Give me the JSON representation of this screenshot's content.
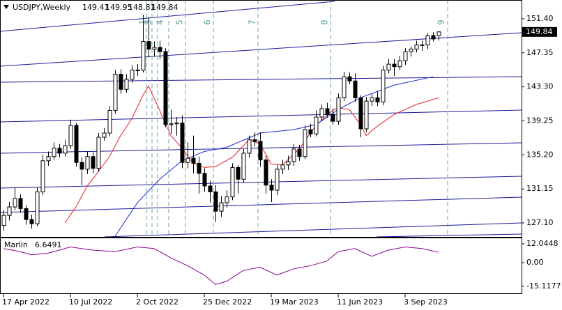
{
  "chart_data": {
    "type": "candlestick",
    "title": "USDJPY,Weekly",
    "categories": [
      "17 Apr 2022",
      null,
      null,
      null,
      null,
      null,
      null,
      null,
      null,
      null,
      null,
      null,
      "10 Jul 2022",
      null,
      null,
      null,
      null,
      null,
      null,
      null,
      null,
      null,
      null,
      null,
      "2 Oct 2022",
      null,
      null,
      null,
      null,
      null,
      null,
      null,
      null,
      null,
      null,
      null,
      "25 Dec 2022",
      null,
      null,
      null,
      null,
      null,
      null,
      null,
      null,
      null,
      null,
      null,
      "19 Mar 2023",
      null,
      null,
      null,
      null,
      null,
      null,
      null,
      null,
      null,
      null,
      null,
      "11 Jun 2023",
      null,
      null,
      null,
      null,
      null,
      null,
      null,
      null,
      null,
      null,
      null,
      "3 Sep 2023",
      null,
      null,
      null,
      null,
      null,
      null
    ],
    "ohlc": [
      [
        126.8,
        128.6,
        126.2,
        128.0
      ],
      [
        128.0,
        129.6,
        127.4,
        129.0
      ],
      [
        129.0,
        131.3,
        128.6,
        130.0
      ],
      [
        130.0,
        130.5,
        128.3,
        128.8
      ],
      [
        128.8,
        129.2,
        126.9,
        127.5
      ],
      [
        127.5,
        128.1,
        126.4,
        127.0
      ],
      [
        127.0,
        131.3,
        126.7,
        130.8
      ],
      [
        130.8,
        135.2,
        130.4,
        134.5
      ],
      [
        134.5,
        135.6,
        133.9,
        135.0
      ],
      [
        135.0,
        136.7,
        134.6,
        136.0
      ],
      [
        136.0,
        136.5,
        134.9,
        135.4
      ],
      [
        135.4,
        137.0,
        135.0,
        136.3
      ],
      [
        136.3,
        139.4,
        135.9,
        138.7
      ],
      [
        138.7,
        139.0,
        133.8,
        134.3
      ],
      [
        134.3,
        134.9,
        131.6,
        133.5
      ],
      [
        133.5,
        135.6,
        132.9,
        135.0
      ],
      [
        135.0,
        135.5,
        133.0,
        133.6
      ],
      [
        133.6,
        137.8,
        133.2,
        137.3
      ],
      [
        137.3,
        138.4,
        136.9,
        137.8
      ],
      [
        137.8,
        141.0,
        137.4,
        140.5
      ],
      [
        140.5,
        145.3,
        140.1,
        144.8
      ],
      [
        144.8,
        145.4,
        142.5,
        143.0
      ],
      [
        143.0,
        144.8,
        142.6,
        144.2
      ],
      [
        144.2,
        145.9,
        143.8,
        145.3
      ],
      [
        145.3,
        146.0,
        144.6,
        145.3
      ],
      [
        145.3,
        151.9,
        145.0,
        148.7
      ],
      [
        148.7,
        151.6,
        146.8,
        147.8
      ],
      [
        147.8,
        148.7,
        146.9,
        148.0
      ],
      [
        148.0,
        148.8,
        146.6,
        147.5
      ],
      [
        147.5,
        147.9,
        138.5,
        138.8
      ],
      [
        138.8,
        140.6,
        137.7,
        138.9
      ],
      [
        138.9,
        139.7,
        137.5,
        139.0
      ],
      [
        139.0,
        139.9,
        133.6,
        134.3
      ],
      [
        134.3,
        136.7,
        133.6,
        134.8
      ],
      [
        134.8,
        137.5,
        133.0,
        134.2
      ],
      [
        134.2,
        135.0,
        130.6,
        133.0
      ],
      [
        133.0,
        133.6,
        130.8,
        131.5
      ],
      [
        131.5,
        132.1,
        129.5,
        130.8
      ],
      [
        130.8,
        131.6,
        127.2,
        128.5
      ],
      [
        128.5,
        130.3,
        127.8,
        129.5
      ],
      [
        129.5,
        131.0,
        128.9,
        130.2
      ],
      [
        130.2,
        134.2,
        129.8,
        133.7
      ],
      [
        133.7,
        134.0,
        130.6,
        132.3
      ],
      [
        132.3,
        135.9,
        131.9,
        135.4
      ],
      [
        135.4,
        137.5,
        134.9,
        137.0
      ],
      [
        137.0,
        137.9,
        136.2,
        136.8
      ],
      [
        136.8,
        137.9,
        133.8,
        134.6
      ],
      [
        134.6,
        135.1,
        130.6,
        131.6
      ],
      [
        131.6,
        132.3,
        129.6,
        131.0
      ],
      [
        131.0,
        134.0,
        130.4,
        133.5
      ],
      [
        133.5,
        134.6,
        132.9,
        134.0
      ],
      [
        134.0,
        135.1,
        133.4,
        134.4
      ],
      [
        134.4,
        136.5,
        133.9,
        135.9
      ],
      [
        135.9,
        136.4,
        134.5,
        135.0
      ],
      [
        135.0,
        138.7,
        134.7,
        138.2
      ],
      [
        138.2,
        138.9,
        137.3,
        137.7
      ],
      [
        137.7,
        140.5,
        137.4,
        139.7
      ],
      [
        139.7,
        141.2,
        139.2,
        140.7
      ],
      [
        140.7,
        141.4,
        139.6,
        140.0
      ],
      [
        140.0,
        140.7,
        138.8,
        139.2
      ],
      [
        139.2,
        142.5,
        138.8,
        142.0
      ],
      [
        142.0,
        145.1,
        141.6,
        144.5
      ],
      [
        144.5,
        145.0,
        143.6,
        144.0
      ],
      [
        144.0,
        144.9,
        141.5,
        142.0
      ],
      [
        142.0,
        142.3,
        137.3,
        138.3
      ],
      [
        138.3,
        142.1,
        137.9,
        141.6
      ],
      [
        141.6,
        142.5,
        141.0,
        142.0
      ],
      [
        142.0,
        142.8,
        141.0,
        141.5
      ],
      [
        141.5,
        145.8,
        141.1,
        145.3
      ],
      [
        145.3,
        146.6,
        144.9,
        146.0
      ],
      [
        146.0,
        146.6,
        144.6,
        145.7
      ],
      [
        145.7,
        147.0,
        145.3,
        146.4
      ],
      [
        146.4,
        147.9,
        145.9,
        147.5
      ],
      [
        147.5,
        148.1,
        146.9,
        147.8
      ],
      [
        147.8,
        148.8,
        147.4,
        148.3
      ],
      [
        148.3,
        148.8,
        147.6,
        148.3
      ],
      [
        148.3,
        149.7,
        147.8,
        149.4
      ],
      [
        149.4,
        149.8,
        148.7,
        149.0
      ],
      [
        149.41,
        149.95,
        148.81,
        149.84
      ]
    ],
    "moving_averages": [
      {
        "color": "#e8202a",
        "x": [
          11,
          13,
          15,
          17,
          19,
          21,
          23,
          25,
          26,
          28,
          30,
          32,
          34,
          36,
          38,
          41,
          44,
          46,
          48,
          50,
          53,
          56,
          59,
          60,
          62,
          64,
          65,
          67,
          70,
          74,
          78
        ],
        "values": [
          127.1,
          129.0,
          131.5,
          133.2,
          135.0,
          137.5,
          139.5,
          142.3,
          143.4,
          140.5,
          137.5,
          136.0,
          134.2,
          133.7,
          133.8,
          134.9,
          137.0,
          136.5,
          134.1,
          134.0,
          135.9,
          138.7,
          140.5,
          140.8,
          140.6,
          138.8,
          137.5,
          138.6,
          140.0,
          141.2,
          142.0
        ]
      },
      {
        "color": "#1a2bd4",
        "x": [
          20,
          24,
          28,
          32,
          36,
          40,
          46,
          52,
          56,
          60,
          64,
          70,
          77
        ],
        "values": [
          125.5,
          129.5,
          132.3,
          134.5,
          135.6,
          136.1,
          137.8,
          138.2,
          138.8,
          140.6,
          142.0,
          143.5,
          144.5
        ]
      }
    ],
    "ylim": [
      125.44,
      153.64
    ],
    "yticks": [
      {
        "value": 127.1,
        "label": "127.10"
      },
      {
        "value": 131.15,
        "label": "131.15"
      },
      {
        "value": 135.2,
        "label": "135.20"
      },
      {
        "value": 139.25,
        "label": "139.25"
      },
      {
        "value": 143.3,
        "label": "143.30"
      },
      {
        "value": 147.35,
        "label": "147.35"
      },
      {
        "value": 151.4,
        "label": "151.40"
      }
    ],
    "time_zones": [
      "1",
      "3",
      "4",
      "5",
      "6",
      "7",
      "8",
      "9"
    ],
    "indicator": {
      "name": "Marlin",
      "color": "#8b008b",
      "x": [
        0,
        3,
        5,
        8,
        12,
        16,
        20,
        24,
        27,
        30,
        33,
        36,
        38,
        40,
        43,
        46,
        49,
        52,
        55,
        58,
        60,
        63,
        66,
        69,
        72,
        75,
        78
      ],
      "values": [
        9,
        7,
        5,
        6,
        10,
        8,
        7,
        10,
        9,
        3,
        -2,
        -8,
        -14,
        -12,
        -5,
        -3,
        -8,
        -4,
        -2,
        1,
        7,
        9,
        4,
        8,
        10,
        9,
        6.6491
      ],
      "ylim": [
        -19.2,
        15.6
      ],
      "yticks": [
        12.0448,
        {
          "value": 0,
          "label": "0.00"
        },
        -15.1177
      ]
    }
  }
}
